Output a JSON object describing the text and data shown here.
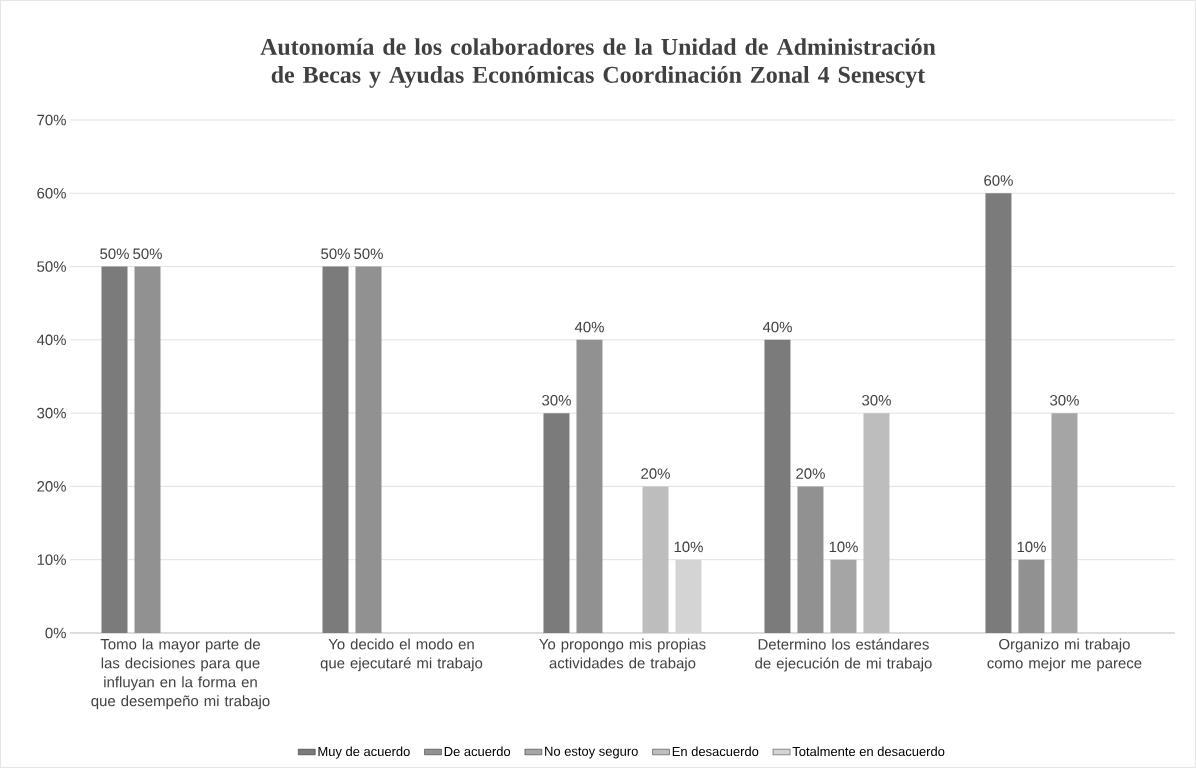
{
  "chart_data": {
    "type": "bar",
    "title": "Autonomía de los colaboradores de la Unidad de Administración de Becas y Ayudas Económicas Coordinación Zonal 4 Senescyt",
    "categories": [
      "Tomo la mayor parte de las decisiones para que influyan en la forma en que desempeño mi trabajo",
      "Yo decido el modo en que ejecutaré mi trabajo",
      "Yo propongo mis propias actividades de trabajo",
      "Determino los estándares de ejecución de mi trabajo",
      "Organizo mi trabajo como mejor me parece"
    ],
    "series": [
      {
        "name": "Muy de acuerdo",
        "color": "#7b7b7b",
        "values": [
          50,
          50,
          30,
          40,
          60
        ],
        "value_labels": [
          "50%",
          "50%",
          "30%",
          "40%",
          "60%"
        ]
      },
      {
        "name": "De acuerdo",
        "color": "#919191",
        "values": [
          50,
          50,
          40,
          20,
          10
        ],
        "value_labels": [
          "50%",
          "50%",
          "40%",
          "20%",
          "10%"
        ]
      },
      {
        "name": "No estoy seguro",
        "color": "#a5a5a5",
        "values": [
          null,
          null,
          null,
          10,
          30
        ],
        "value_labels": [
          null,
          null,
          null,
          "10%",
          "30%"
        ]
      },
      {
        "name": "En desacuerdo",
        "color": "#bdbdbd",
        "values": [
          null,
          null,
          20,
          30,
          null
        ],
        "value_labels": [
          null,
          null,
          "20%",
          "30%",
          null
        ]
      },
      {
        "name": "Totalmente en desacuerdo",
        "color": "#d4d4d4",
        "values": [
          null,
          null,
          10,
          null,
          null
        ],
        "value_labels": [
          null,
          null,
          "10%",
          null,
          null
        ]
      }
    ],
    "ylim": [
      0,
      70
    ],
    "yticks": [
      {
        "value": 0,
        "label": "0%"
      },
      {
        "value": 10,
        "label": "10%"
      },
      {
        "value": 20,
        "label": "20%"
      },
      {
        "value": 30,
        "label": "30%"
      },
      {
        "value": 40,
        "label": "40%"
      },
      {
        "value": 50,
        "label": "50%"
      },
      {
        "value": 60,
        "label": "60%"
      },
      {
        "value": 70,
        "label": "70%"
      }
    ],
    "grid": "y",
    "legend": "bottom"
  }
}
